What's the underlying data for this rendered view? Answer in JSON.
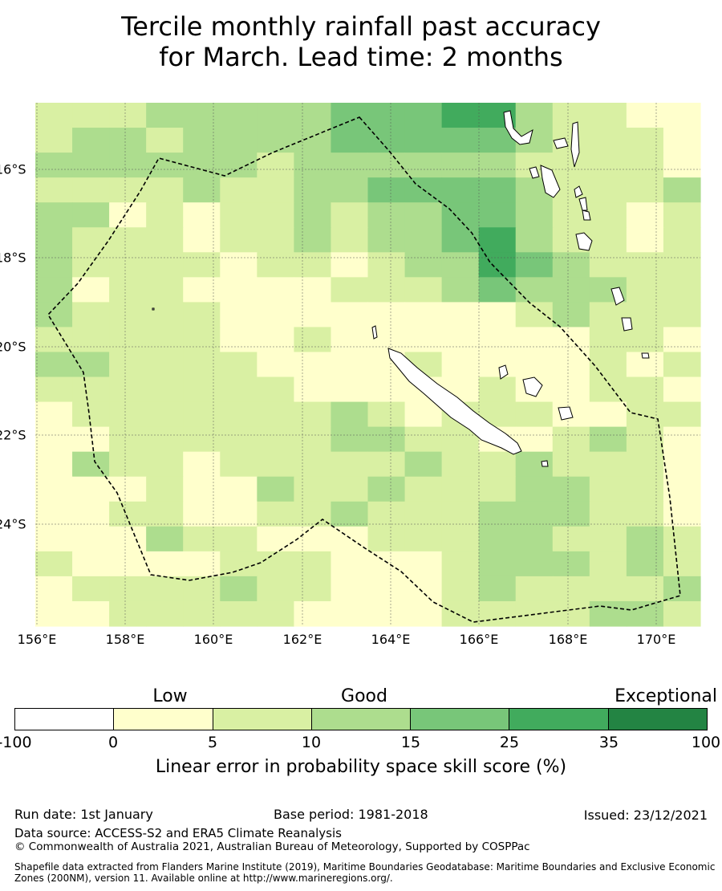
{
  "title_line1": "Tercile monthly rainfall past accuracy",
  "title_line2": "for March. Lead time: 2 months",
  "map": {
    "lon_labels": [
      "156°E",
      "158°E",
      "160°E",
      "162°E",
      "164°E",
      "166°E",
      "168°E",
      "170°E"
    ],
    "lat_labels": [
      "16°S",
      "18°S",
      "20°S",
      "22°S",
      "24°S"
    ],
    "cell_colors": [
      "#ffffff",
      "#ffffcc",
      "#d9f0a3",
      "#addd8e",
      "#78c679",
      "#41ab5d",
      "#238443"
    ],
    "land_color": "#ffffff"
  },
  "colorbar": {
    "category_low": "Low",
    "category_good": "Good",
    "category_exceptional": "Exceptional",
    "colors": [
      "#ffffff",
      "#ffffcc",
      "#d9f0a3",
      "#addd8e",
      "#78c679",
      "#41ab5d",
      "#238443"
    ],
    "ticks": [
      "-100",
      "0",
      "5",
      "10",
      "15",
      "25",
      "35",
      "100"
    ],
    "title": "Linear error in probability space skill score (%)"
  },
  "footer": {
    "run_date": "Run date: 1st January",
    "base_period": "Base period: 1981-2018",
    "issued": "Issued: 23/12/2021",
    "data_source": "Data source: ACCESS-S2 and ERA5 Climate Reanalysis",
    "copyright": "© Commonwealth of Australia 2021, Australian Bureau of Meteorology, Supported by COSPPac",
    "shapefile": "Shapefile data extracted from Flanders Marine Institute (2019), Maritime Boundaries Geodatabase: Maritime Boundaries and Exclusive Economic Zones (200NM), version 11. Available online at http://www.marineregions.org/."
  }
}
